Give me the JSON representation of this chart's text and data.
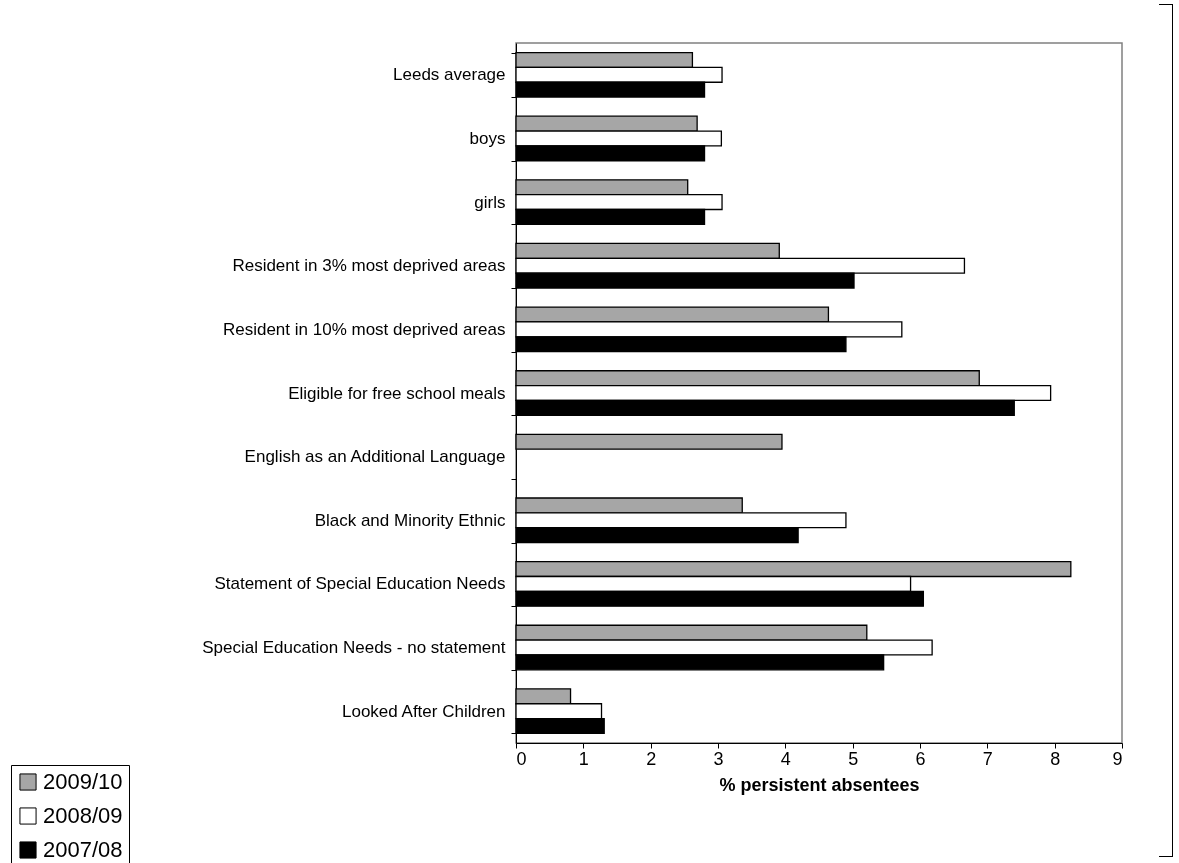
{
  "chart_data": {
    "type": "bar",
    "orientation": "horizontal",
    "xlabel": "% persistent absentees",
    "categories": [
      "Leeds average",
      "boys",
      "girls",
      "Resident in 3% most deprived areas",
      "Resident in 10% most deprived areas",
      "Eligible for free school meals",
      "English as an Additional Language",
      "Black and Minority Ethnic",
      "Statement of Special Education Needs",
      "Special Education Needs - no statement",
      "Looked After Children"
    ],
    "series": [
      {
        "name": "2009/10",
        "color": "#a6a6a6",
        "values": [
          2.62,
          2.69,
          2.55,
          3.91,
          4.64,
          6.88,
          3.95,
          3.36,
          8.24,
          5.21,
          0.81
        ]
      },
      {
        "name": "2008/09",
        "color": "#ffffff",
        "values": [
          3.06,
          3.05,
          3.06,
          6.66,
          5.73,
          7.94,
          null,
          4.9,
          5.86,
          6.18,
          1.27
        ]
      },
      {
        "name": "2007/08",
        "color": "#000000",
        "values": [
          2.8,
          2.8,
          2.8,
          5.02,
          4.9,
          7.4,
          null,
          4.19,
          6.05,
          5.46,
          1.31
        ]
      }
    ],
    "xlim": [
      0,
      9
    ],
    "xticks": [
      0,
      1,
      2,
      3,
      4,
      5,
      6,
      7,
      8,
      9
    ],
    "grid": false,
    "legend": "bottom left"
  }
}
